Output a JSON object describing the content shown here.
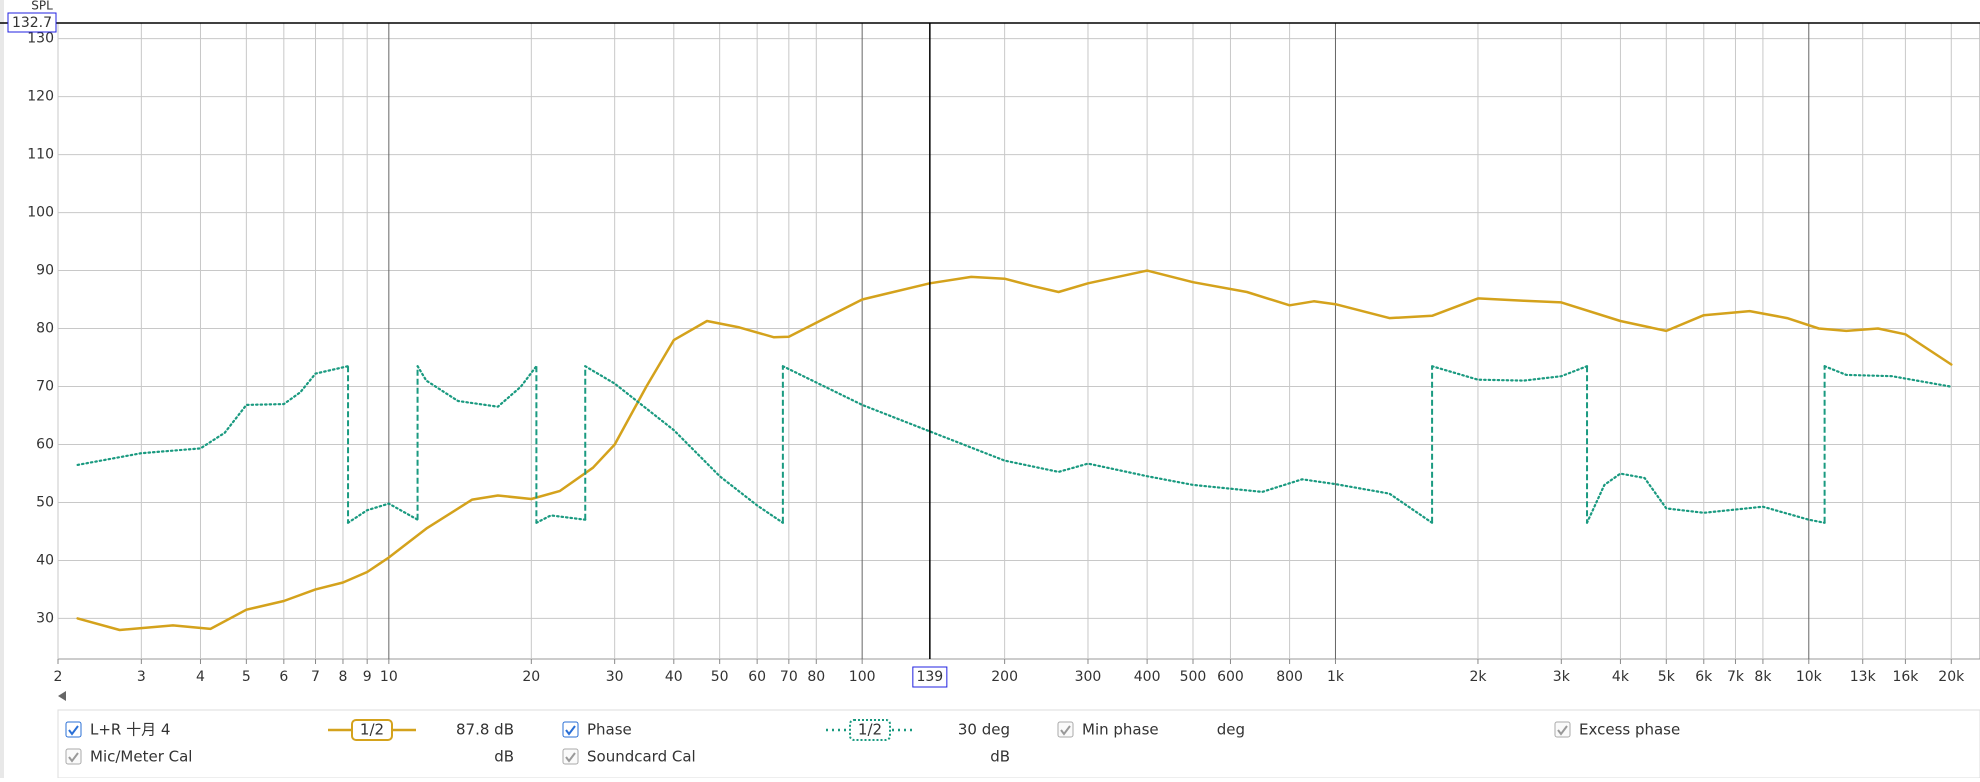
{
  "chart_data": {
    "type": "line",
    "y_label": "SPL",
    "xscale": "log",
    "grid": true,
    "xlim": [
      2,
      23000
    ],
    "ylim": [
      23,
      132.7
    ],
    "y2lim": [
      -493.3,
      969.3
    ],
    "yticks": [
      30,
      40,
      50,
      60,
      70,
      80,
      90,
      100,
      110,
      120,
      130
    ],
    "xticks": [
      2,
      3,
      4,
      5,
      6,
      7,
      8,
      9,
      10,
      20,
      30,
      40,
      50,
      60,
      70,
      80,
      100,
      200,
      300,
      400,
      500,
      600,
      800,
      {
        "value": 1000,
        "label": "1k"
      },
      {
        "value": 2000,
        "label": "2k"
      },
      {
        "value": 3000,
        "label": "3k"
      },
      {
        "value": 4000,
        "label": "4k"
      },
      {
        "value": 5000,
        "label": "5k"
      },
      {
        "value": 6000,
        "label": "6k"
      },
      {
        "value": 7000,
        "label": "7k"
      },
      {
        "value": 8000,
        "label": "8k"
      },
      {
        "value": 10000,
        "label": "10k"
      },
      {
        "value": 13000,
        "label": "13k"
      },
      {
        "value": 16000,
        "label": "16k"
      },
      {
        "value": 20000,
        "label": "20k"
      }
    ],
    "cursor": {
      "x": 139,
      "y": 132.7
    },
    "series": [
      {
        "name": "L+R 十月 4",
        "color": "#d4a21c",
        "smoothing": "1/2",
        "readout": "87.8 dB",
        "x": [
          2.2,
          2.7,
          3.5,
          4.2,
          5,
          6,
          7,
          8,
          9,
          10,
          12,
          15,
          17,
          20,
          23,
          27,
          30,
          35,
          40,
          47,
          55,
          65,
          70,
          80,
          100,
          139,
          170,
          200,
          230,
          260,
          300,
          400,
          500,
          650,
          800,
          900,
          1000,
          1300,
          1600,
          2000,
          2500,
          3000,
          4000,
          5000,
          6000,
          7500,
          9000,
          10500,
          12000,
          14000,
          16000,
          20000
        ],
        "values": [
          30,
          28,
          28.8,
          28.2,
          31.5,
          33,
          35,
          36.2,
          38,
          40.5,
          45.5,
          50.5,
          51.2,
          50.6,
          52,
          56,
          60,
          70,
          78,
          81.3,
          80.2,
          78.5,
          78.6,
          81,
          85,
          87.8,
          88.9,
          88.6,
          87.3,
          86.3,
          87.8,
          90,
          88,
          86.3,
          84,
          84.7,
          84.2,
          81.8,
          82.2,
          85.2,
          84.8,
          84.5,
          81.3,
          79.6,
          82.3,
          83,
          81.8,
          80,
          79.6,
          80,
          79,
          73.8
        ]
      },
      {
        "name": "Phase",
        "color": "#1a9a80",
        "axis": "y2",
        "smoothing": "1/2",
        "readout": "30 deg",
        "x": [
          2.2,
          3,
          4,
          4.5,
          5,
          6,
          6.5,
          7,
          8.2,
          8.2,
          8.2,
          9,
          10,
          11.5,
          11.5,
          11.5,
          12,
          14,
          17,
          19,
          20.5,
          20.5,
          20.5,
          22,
          26,
          26,
          26,
          30,
          40,
          50,
          60,
          68,
          68,
          68,
          100,
          139,
          200,
          260,
          300,
          400,
          500,
          700,
          850,
          1000,
          1300,
          1600,
          1600,
          1600,
          2000,
          2500,
          3000,
          3400,
          3400,
          3400,
          3700,
          4000,
          4500,
          5000,
          6000,
          8000,
          10000,
          10800,
          10800,
          10800,
          12000,
          15000,
          20000
        ],
        "values": [
          -47,
          -20,
          -9,
          27,
          91,
          93,
          120,
          163,
          180,
          null,
          -180,
          -151,
          -136,
          -173,
          null,
          180,
          147,
          100,
          87,
          133,
          180,
          null,
          -180,
          -163,
          -173,
          null,
          180,
          140,
          33,
          -73,
          -140,
          -180,
          null,
          180,
          91,
          30,
          -37,
          -63,
          -44,
          -73,
          -93,
          -109,
          -80,
          -91,
          -113,
          -180,
          null,
          180,
          149,
          147,
          157,
          180,
          null,
          -180,
          -93,
          -67,
          -77,
          -147,
          -157,
          -143,
          -173,
          -180,
          null,
          180,
          160,
          157,
          133
        ]
      }
    ],
    "other_traces": [
      {
        "name": "Min phase",
        "unit": "deg"
      },
      {
        "name": "Excess phase"
      },
      {
        "name": "Mic/Meter Cal",
        "unit": "dB"
      },
      {
        "name": "Soundcard Cal",
        "unit": "dB"
      }
    ]
  }
}
